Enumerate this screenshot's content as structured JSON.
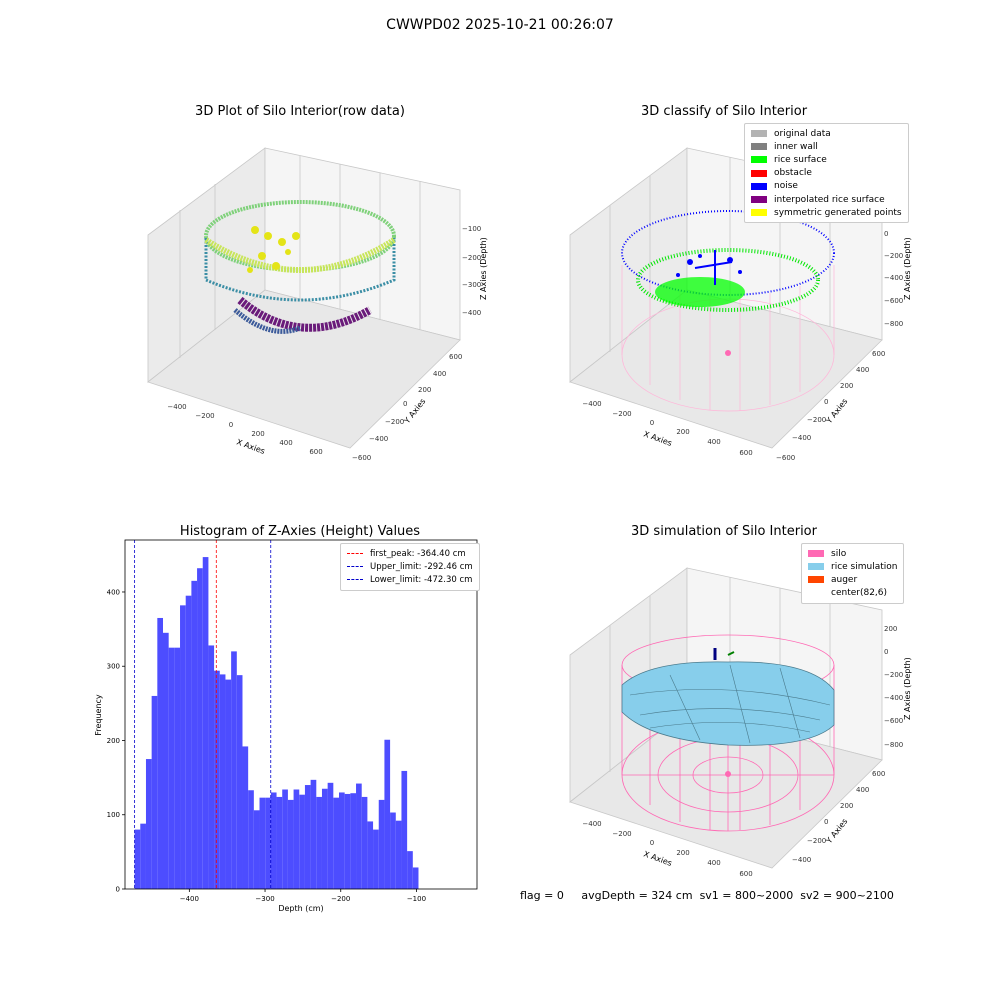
{
  "suptitle": "CWWPD02 2025-10-21 00:26:07",
  "panels": {
    "raw3d": {
      "title": "3D Plot of Silo Interior(row data)",
      "xlabel": "X Axies",
      "ylabel": "Y Axies",
      "zlabel": "Z Axies (Depth)",
      "xticks": [
        "−400",
        "−200",
        "0",
        "200",
        "400",
        "600"
      ],
      "yticks": [
        "−600",
        "−400",
        "−200",
        "0",
        "200",
        "400",
        "600"
      ],
      "zticks": [
        "−100",
        "−200",
        "−300",
        "−400"
      ]
    },
    "classify3d": {
      "title": "3D classify of Silo Interior",
      "xlabel": "X Axies",
      "ylabel": "Y Axies",
      "zlabel": "Z Axies (Depth)",
      "xticks": [
        "−400",
        "−200",
        "0",
        "200",
        "400",
        "600"
      ],
      "yticks": [
        "−600",
        "−400",
        "−200",
        "0",
        "200",
        "400",
        "600"
      ],
      "zticks": [
        "200",
        "0",
        "−200",
        "−400",
        "−600",
        "−800"
      ],
      "legend": [
        {
          "label": "original data",
          "color": "#b3b3b3"
        },
        {
          "label": "inner wall",
          "color": "#808080"
        },
        {
          "label": "rice surface",
          "color": "#00ff00"
        },
        {
          "label": "obstacle",
          "color": "#ff0000"
        },
        {
          "label": "noise",
          "color": "#0000ff"
        },
        {
          "label": "interpolated rice surface",
          "color": "#800080"
        },
        {
          "label": "symmetric generated points",
          "color": "#ffff00"
        }
      ]
    },
    "simulation3d": {
      "title": "3D simulation of Silo Interior",
      "xlabel": "X Axies",
      "ylabel": "Y Axies",
      "zlabel": "Z Axies (Depth)",
      "xticks": [
        "−400",
        "−200",
        "0",
        "200",
        "400",
        "600"
      ],
      "yticks": [
        "−400",
        "−200",
        "0",
        "200",
        "400",
        "600"
      ],
      "zticks": [
        "200",
        "0",
        "−200",
        "−400",
        "−600",
        "−800"
      ],
      "legend": [
        {
          "label": "silo",
          "color": "#ff69b4"
        },
        {
          "label": "rice simulation",
          "color": "#87ceeb"
        },
        {
          "label": "auger",
          "color": "#ff4500"
        },
        {
          "label": "center(82,6)",
          "color": ""
        }
      ]
    }
  },
  "status": {
    "flag": "flag = 0",
    "avg_depth": "avgDepth = 324 cm",
    "sv1": "sv1 = 800~2000",
    "sv2": "sv2 = 900~2100"
  },
  "colors": {
    "bar": "#4d4dff",
    "peak_line": "#ff0000",
    "limit_line": "#0000cc",
    "silo_wire": "#ff69b4",
    "rice_surface": "#87ceeb"
  },
  "chart_data": {
    "type": "bar",
    "title": "Histogram of Z-Axies (Height) Values",
    "xlabel": "Depth (cm)",
    "ylabel": "Frequency",
    "xlim": [
      -485,
      -20
    ],
    "ylim": [
      0,
      470
    ],
    "xticks": [
      -400,
      -300,
      -200,
      -100
    ],
    "xtick_labels": [
      "−400",
      "−300",
      "−200",
      "−100"
    ],
    "yticks": [
      0,
      100,
      200,
      300,
      400
    ],
    "bin_start": -472.3,
    "bin_width": 7.5,
    "values": [
      80,
      88,
      175,
      260,
      365,
      345,
      325,
      325,
      382,
      395,
      415,
      432,
      447,
      328,
      294,
      289,
      282,
      320,
      288,
      192,
      133,
      106,
      123,
      123,
      130,
      124,
      134,
      120,
      134,
      127,
      140,
      147,
      124,
      135,
      143,
      123,
      130,
      128,
      129,
      142,
      124,
      91,
      80,
      120,
      201,
      103,
      92,
      159,
      51,
      29
    ],
    "vlines": [
      {
        "label": "first_peak: -364.40 cm",
        "x": -364.4,
        "color": "#ff0000"
      },
      {
        "label": "Upper_limit: -292.46 cm",
        "x": -292.46,
        "color": "#0000cc"
      },
      {
        "label": "Lower_limit: -472.30 cm",
        "x": -472.3,
        "color": "#0000cc"
      }
    ]
  }
}
